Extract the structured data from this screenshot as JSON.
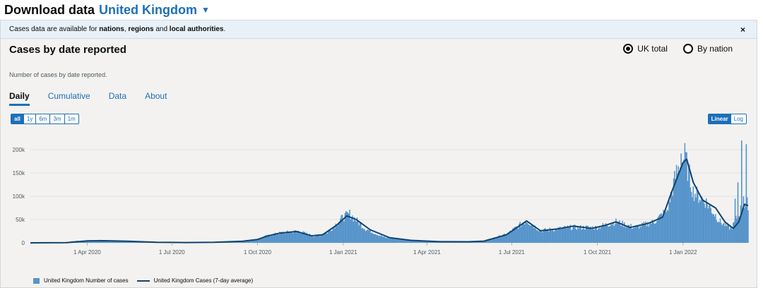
{
  "header": {
    "title": "Download data",
    "area": "United Kingdom"
  },
  "notice": {
    "prefix": "Cases data are available for ",
    "b1": "nations",
    "sep1": ", ",
    "b2": "regions",
    "sep2": " and ",
    "b3": "local authorities",
    "suffix": ".",
    "close": "×"
  },
  "card": {
    "title": "Cases by date reported",
    "description": "Number of cases by date reported.",
    "radios": [
      {
        "label": "UK total",
        "checked": true
      },
      {
        "label": "By nation",
        "checked": false
      }
    ],
    "tabs": [
      "Daily",
      "Cumulative",
      "Data",
      "About"
    ],
    "range_buttons": [
      "all",
      "1y",
      "6m",
      "3m",
      "1m"
    ],
    "scale_buttons": [
      "Linear",
      "Log"
    ]
  },
  "colors": {
    "bars": "#5694ca",
    "line": "#12436d",
    "accent": "#1d70b8"
  },
  "chart_data": {
    "type": "bar",
    "x_ticks": [
      "1 Apr 2020",
      "1 Jul 2020",
      "1 Oct 2020",
      "1 Jan 2021",
      "1 Apr 2021",
      "1 Jul 2021",
      "1 Oct 2021",
      "1 Jan 2022"
    ],
    "y_ticks": [
      "0",
      "50k",
      "100k",
      "150k",
      "200k"
    ],
    "ylim": [
      0,
      220000
    ],
    "x_range": [
      "2020-01-31",
      "2022-03-12"
    ],
    "scale": "linear",
    "grid": true,
    "legend_position": "bottom-left",
    "series": [
      {
        "name": "United Kingdom Number of cases",
        "kind": "bar",
        "daily_profile": [
          [
            "2020-01-31",
            0
          ],
          [
            "2020-03-01",
            0
          ],
          [
            "2020-03-20",
            4000
          ],
          [
            "2020-04-15",
            5500
          ],
          [
            "2020-05-10",
            4000
          ],
          [
            "2020-06-15",
            1200
          ],
          [
            "2020-07-15",
            700
          ],
          [
            "2020-08-15",
            1100
          ],
          [
            "2020-09-15",
            3500
          ],
          [
            "2020-10-01",
            7500
          ],
          [
            "2020-10-10",
            14000
          ],
          [
            "2020-10-25",
            21000
          ],
          [
            "2020-11-14",
            25000
          ],
          [
            "2020-12-01",
            14000
          ],
          [
            "2020-12-15",
            22000
          ],
          [
            "2021-01-01",
            55000
          ],
          [
            "2021-01-08",
            62000
          ],
          [
            "2021-01-25",
            30000
          ],
          [
            "2021-02-15",
            11000
          ],
          [
            "2021-03-15",
            5500
          ],
          [
            "2021-04-15",
            2600
          ],
          [
            "2021-05-15",
            2400
          ],
          [
            "2021-06-01",
            4000
          ],
          [
            "2021-06-25",
            18000
          ],
          [
            "2021-07-17",
            48000
          ],
          [
            "2021-08-01",
            26000
          ],
          [
            "2021-09-01",
            33000
          ],
          [
            "2021-09-30",
            33000
          ],
          [
            "2021-10-21",
            45000
          ],
          [
            "2021-11-10",
            33000
          ],
          [
            "2021-12-01",
            45000
          ],
          [
            "2021-12-15",
            70000
          ],
          [
            "2021-12-25",
            150000
          ],
          [
            "2022-01-03",
            185000
          ],
          [
            "2022-01-12",
            110000
          ],
          [
            "2022-01-25",
            90000
          ],
          [
            "2022-02-10",
            45000
          ],
          [
            "2022-02-22",
            30000
          ],
          [
            "2022-03-05",
            75000
          ],
          [
            "2022-03-12",
            85000
          ]
        ]
      },
      {
        "name": "United Kingdom Cases (7-day average)",
        "kind": "line",
        "points": [
          [
            "2020-01-31",
            0
          ],
          [
            "2020-03-10",
            300
          ],
          [
            "2020-04-01",
            4300
          ],
          [
            "2020-04-20",
            4600
          ],
          [
            "2020-05-15",
            3400
          ],
          [
            "2020-06-15",
            1100
          ],
          [
            "2020-07-15",
            650
          ],
          [
            "2020-08-15",
            1050
          ],
          [
            "2020-09-15",
            3400
          ],
          [
            "2020-10-01",
            7200
          ],
          [
            "2020-10-10",
            13800
          ],
          [
            "2020-10-25",
            21000
          ],
          [
            "2020-11-12",
            24500
          ],
          [
            "2020-11-28",
            15000
          ],
          [
            "2020-12-10",
            17500
          ],
          [
            "2020-12-25",
            38000
          ],
          [
            "2021-01-05",
            58000
          ],
          [
            "2021-01-15",
            50000
          ],
          [
            "2021-01-30",
            28000
          ],
          [
            "2021-02-20",
            11000
          ],
          [
            "2021-03-15",
            5300
          ],
          [
            "2021-04-15",
            2500
          ],
          [
            "2021-05-15",
            2300
          ],
          [
            "2021-06-01",
            3600
          ],
          [
            "2021-06-25",
            17000
          ],
          [
            "2021-07-17",
            47000
          ],
          [
            "2021-08-01",
            26000
          ],
          [
            "2021-08-20",
            30000
          ],
          [
            "2021-09-05",
            36000
          ],
          [
            "2021-09-25",
            31000
          ],
          [
            "2021-10-10",
            38000
          ],
          [
            "2021-10-21",
            45000
          ],
          [
            "2021-11-05",
            33000
          ],
          [
            "2021-11-25",
            42000
          ],
          [
            "2021-12-10",
            55000
          ],
          [
            "2021-12-20",
            110000
          ],
          [
            "2022-01-01",
            172000
          ],
          [
            "2022-01-05",
            180000
          ],
          [
            "2022-01-12",
            130000
          ],
          [
            "2022-01-22",
            92000
          ],
          [
            "2022-02-05",
            75000
          ],
          [
            "2022-02-15",
            45000
          ],
          [
            "2022-02-24",
            31000
          ],
          [
            "2022-03-02",
            45000
          ],
          [
            "2022-03-08",
            83000
          ],
          [
            "2022-03-12",
            80000
          ]
        ]
      }
    ],
    "spike_bars": [
      [
        "2021-12-30",
        192000
      ],
      [
        "2022-01-02",
        178000
      ],
      [
        "2022-01-04",
        195000
      ],
      [
        "2022-03-01",
        130000
      ],
      [
        "2022-03-05",
        220000
      ],
      [
        "2022-03-10",
        212000
      ],
      [
        "2022-02-26",
        95000
      ],
      [
        "2022-03-07",
        100000
      ]
    ]
  }
}
